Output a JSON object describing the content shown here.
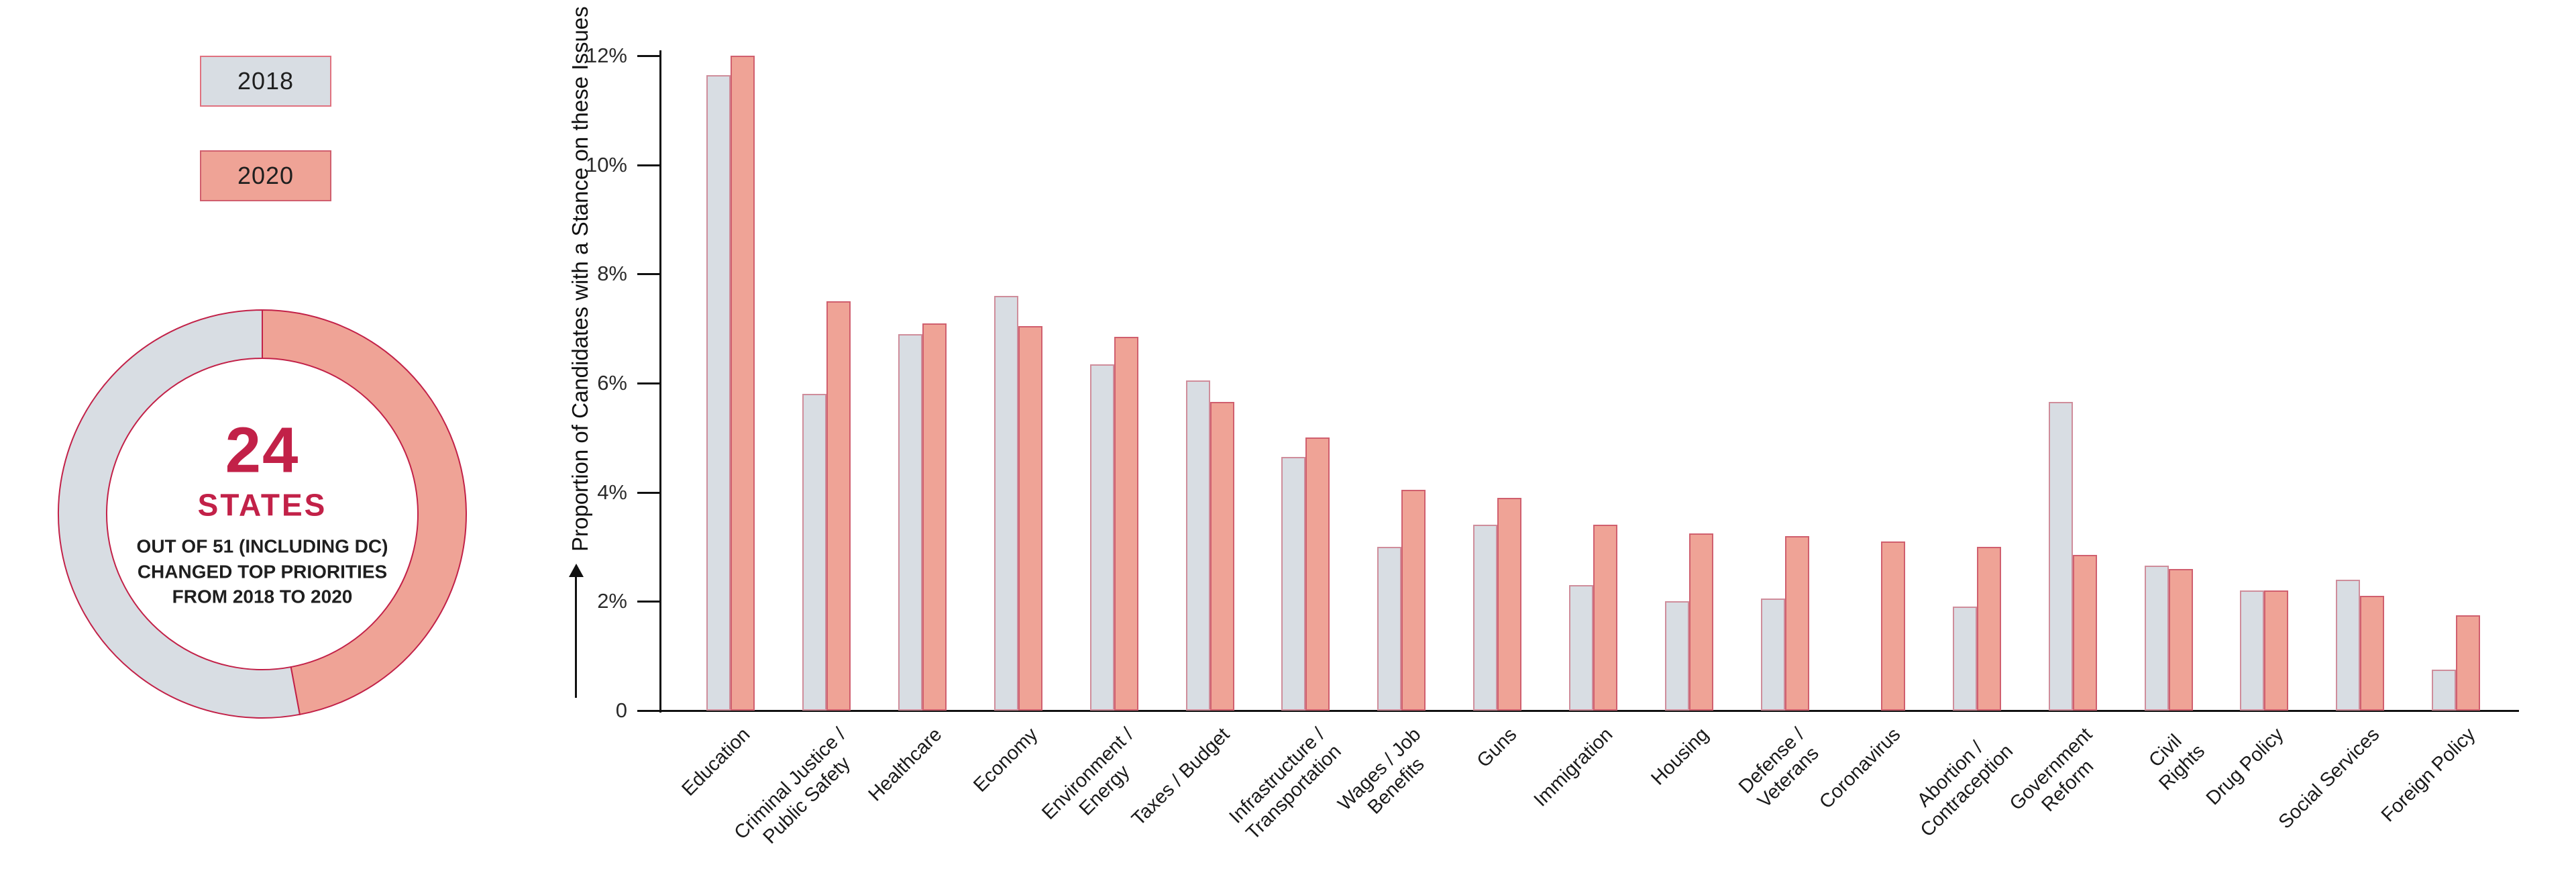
{
  "legend": {
    "items": [
      {
        "label": "2018",
        "fill": "#d8dde3",
        "border": "#e0717f"
      },
      {
        "label": "2020",
        "fill": "#efa396",
        "border": "#d05f6e"
      }
    ]
  },
  "donut": {
    "value": 24,
    "total": 51,
    "center_number": "24",
    "center_label": "STATES",
    "center_caption": "OUT OF 51 (INCLUDING DC) CHANGED TOP PRIORITIES FROM 2018 TO 2020",
    "highlight_color": "#efa396",
    "base_color": "#d8dde3",
    "ring_border_color": "#c22148",
    "accent_text_color": "#c22148"
  },
  "chart_data": {
    "type": "bar",
    "title": "",
    "xlabel": "",
    "ylabel": "Proportion of Candidates with a Stance on these Issues",
    "ylim": [
      0,
      12
    ],
    "grid": false,
    "legend_position": "top-left",
    "y_ticks": [
      {
        "value": 12,
        "label": "12%"
      },
      {
        "value": 10,
        "label": "10%"
      },
      {
        "value": 8,
        "label": "8%"
      },
      {
        "value": 6,
        "label": "6%"
      },
      {
        "value": 4,
        "label": "4%"
      },
      {
        "value": 2,
        "label": "2%"
      },
      {
        "value": 0,
        "label": "0"
      }
    ],
    "categories": [
      [
        "Education"
      ],
      [
        "Criminal Justice /",
        "Public Safety"
      ],
      [
        "Healthcare"
      ],
      [
        "Economy"
      ],
      [
        "Environment /",
        "Energy"
      ],
      [
        "Taxes / Budget"
      ],
      [
        "Infrastructure /",
        "Transportation"
      ],
      [
        "Wages / Job",
        "Benefits"
      ],
      [
        "Guns"
      ],
      [
        "Immigration"
      ],
      [
        "Housing"
      ],
      [
        "Defense /",
        "Veterans"
      ],
      [
        "Coronavirus"
      ],
      [
        "Abortion /",
        "Contraception"
      ],
      [
        "Government",
        "Reform"
      ],
      [
        "Civil",
        "Rights"
      ],
      [
        "Drug Policy"
      ],
      [
        "Social Services"
      ],
      [
        "Foreign Policy"
      ]
    ],
    "series": [
      {
        "name": "2018",
        "color": "#d8dde3",
        "border": "#cf8d9b",
        "values": [
          11.65,
          5.8,
          6.9,
          7.6,
          6.35,
          6.05,
          4.65,
          3.0,
          3.4,
          2.3,
          2.0,
          2.05,
          0,
          1.9,
          5.65,
          2.65,
          2.2,
          2.4,
          0.75
        ]
      },
      {
        "name": "2020",
        "color": "#efa396",
        "border": "#d05f6e",
        "values": [
          12.0,
          7.5,
          7.1,
          7.05,
          6.85,
          5.65,
          5.0,
          4.05,
          3.9,
          3.4,
          3.25,
          3.2,
          3.1,
          3.0,
          2.85,
          2.6,
          2.2,
          2.1,
          1.75
        ]
      }
    ]
  }
}
